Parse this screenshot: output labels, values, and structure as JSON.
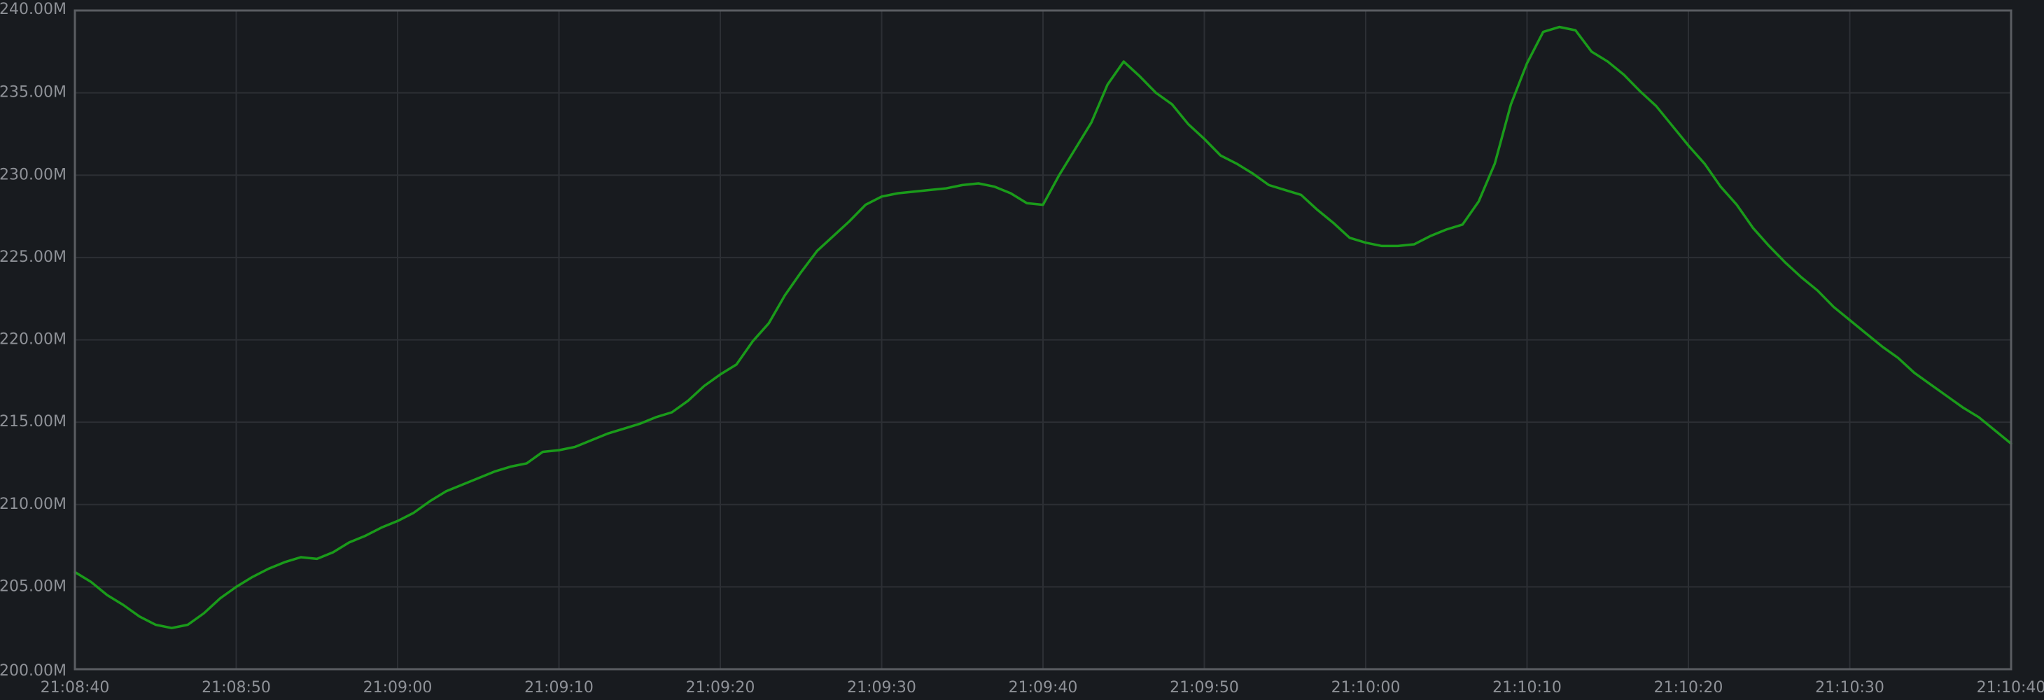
{
  "chart_data": {
    "type": "line",
    "title": "",
    "xlabel": "",
    "ylabel": "",
    "ylim": [
      200000000,
      240000000
    ],
    "xlim": [
      "21:08:40",
      "21:10:40"
    ],
    "grid": true,
    "legend": "none",
    "colors": {
      "background": "#181b1f",
      "grid": "#2c2f34",
      "frame": "#5a5d62",
      "tick_text": "#8e9197",
      "series": "#1a9b1a"
    },
    "y_ticks": [
      {
        "value": 200000000,
        "label": "200.00M"
      },
      {
        "value": 205000000,
        "label": "205.00M"
      },
      {
        "value": 210000000,
        "label": "210.00M"
      },
      {
        "value": 215000000,
        "label": "215.00M"
      },
      {
        "value": 220000000,
        "label": "220.00M"
      },
      {
        "value": 225000000,
        "label": "225.00M"
      },
      {
        "value": 230000000,
        "label": "230.00M"
      },
      {
        "value": 235000000,
        "label": "235.00M"
      },
      {
        "value": 240000000,
        "label": "240.00M"
      }
    ],
    "x_ticks": [
      "21:08:40",
      "21:08:50",
      "21:09:00",
      "21:09:10",
      "21:09:20",
      "21:09:30",
      "21:09:40",
      "21:09:50",
      "21:10:00",
      "21:10:10",
      "21:10:20",
      "21:10:30",
      "21:10:40"
    ],
    "series": [
      {
        "x": [
          "21:08:40",
          "21:08:41",
          "21:08:42",
          "21:08:43",
          "21:08:44",
          "21:08:45",
          "21:08:46",
          "21:08:47",
          "21:08:48",
          "21:08:49",
          "21:08:50",
          "21:08:51",
          "21:08:52",
          "21:08:53",
          "21:08:54",
          "21:08:55",
          "21:08:56",
          "21:08:57",
          "21:08:58",
          "21:08:59",
          "21:09:00",
          "21:09:01",
          "21:09:02",
          "21:09:03",
          "21:09:04",
          "21:09:05",
          "21:09:06",
          "21:09:07",
          "21:09:08",
          "21:09:09",
          "21:09:10",
          "21:09:11",
          "21:09:12",
          "21:09:13",
          "21:09:14",
          "21:09:15",
          "21:09:16",
          "21:09:17",
          "21:09:18",
          "21:09:19",
          "21:09:20",
          "21:09:21",
          "21:09:22",
          "21:09:23",
          "21:09:24",
          "21:09:25",
          "21:09:26",
          "21:09:27",
          "21:09:28",
          "21:09:29",
          "21:09:30",
          "21:09:31",
          "21:09:32",
          "21:09:33",
          "21:09:34",
          "21:09:35",
          "21:09:36",
          "21:09:37",
          "21:09:38",
          "21:09:39",
          "21:09:40",
          "21:09:41",
          "21:09:42",
          "21:09:43",
          "21:09:44",
          "21:09:45",
          "21:09:46",
          "21:09:47",
          "21:09:48",
          "21:09:49",
          "21:09:50",
          "21:09:51",
          "21:09:52",
          "21:09:53",
          "21:09:54",
          "21:09:55",
          "21:09:56",
          "21:09:57",
          "21:09:58",
          "21:09:59",
          "21:10:00",
          "21:10:01",
          "21:10:02",
          "21:10:03",
          "21:10:04",
          "21:10:05",
          "21:10:06",
          "21:10:07",
          "21:10:08",
          "21:10:09",
          "21:10:10",
          "21:10:11",
          "21:10:12",
          "21:10:13",
          "21:10:14",
          "21:10:15",
          "21:10:16",
          "21:10:17",
          "21:10:18",
          "21:10:19",
          "21:10:20",
          "21:10:21",
          "21:10:22",
          "21:10:23",
          "21:10:24",
          "21:10:25",
          "21:10:26",
          "21:10:27",
          "21:10:28",
          "21:10:29",
          "21:10:30",
          "21:10:31",
          "21:10:32",
          "21:10:33",
          "21:10:34",
          "21:10:35",
          "21:10:36",
          "21:10:37",
          "21:10:38",
          "21:10:39",
          "21:10:40"
        ],
        "values": [
          205900000,
          205300000,
          204500000,
          203900000,
          203200000,
          202700000,
          202500000,
          202700000,
          203400000,
          204300000,
          205000000,
          205600000,
          206100000,
          206500000,
          206800000,
          206700000,
          207100000,
          207700000,
          208100000,
          208600000,
          209000000,
          209500000,
          210200000,
          210800000,
          211200000,
          211600000,
          212000000,
          212300000,
          212500000,
          213200000,
          213300000,
          213500000,
          213900000,
          214300000,
          214600000,
          214900000,
          215300000,
          215600000,
          216300000,
          217200000,
          217900000,
          218500000,
          219900000,
          221000000,
          222700000,
          224100000,
          225400000,
          226300000,
          227200000,
          228200000,
          228700000,
          228900000,
          229000000,
          229100000,
          229200000,
          229400000,
          229500000,
          229300000,
          228900000,
          228300000,
          228200000,
          230000000,
          231600000,
          233200000,
          235500000,
          236900000,
          236000000,
          235000000,
          234300000,
          233100000,
          232200000,
          231200000,
          230700000,
          230100000,
          229400000,
          229100000,
          228800000,
          227900000,
          227100000,
          226200000,
          225900000,
          225700000,
          225700000,
          225800000,
          226300000,
          226700000,
          227000000,
          228400000,
          230700000,
          234300000,
          236800000,
          238700000,
          239000000,
          238800000,
          237500000,
          236900000,
          236100000,
          235100000,
          234200000,
          233000000,
          231800000,
          230700000,
          229300000,
          228200000,
          226800000,
          225700000,
          224700000,
          223800000,
          223000000,
          222000000,
          221200000,
          220400000,
          219600000,
          218900000,
          218000000,
          217300000,
          216600000,
          215900000,
          215300000,
          214500000,
          213700000
        ]
      }
    ]
  }
}
